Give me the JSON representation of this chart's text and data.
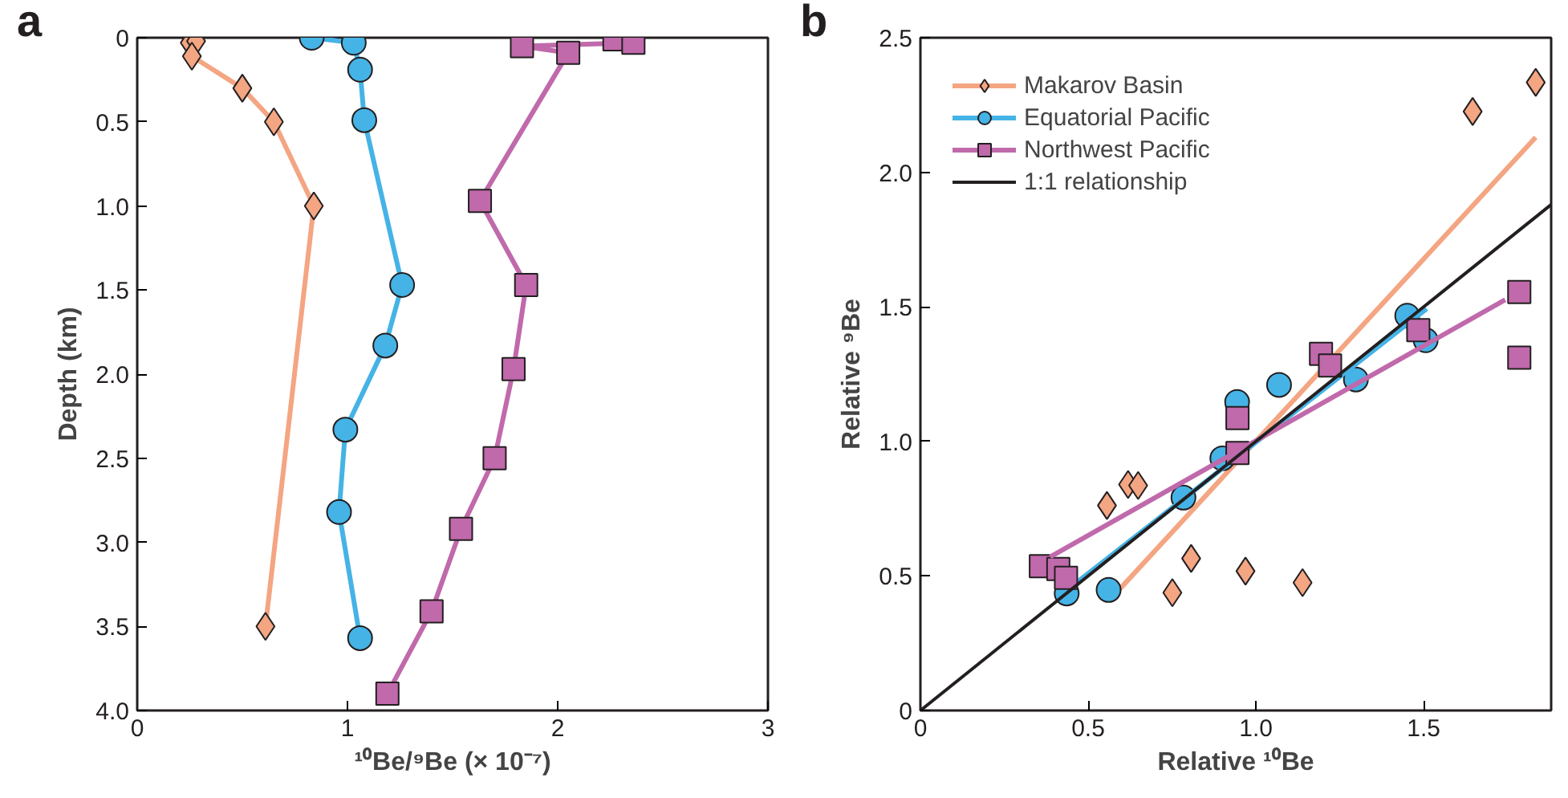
{
  "chart_data": [
    {
      "type": "line",
      "xlabel": "¹⁰Be/⁹Be (× 10⁻⁷)",
      "ylabel": "Depth (km)",
      "annotations": [
        "a"
      ],
      "xlim": [
        0,
        3
      ],
      "xticks": [
        0,
        1,
        2,
        3
      ],
      "ylim": [
        4,
        0
      ],
      "yticks": [
        0,
        {
          "value": 0.5,
          "label": "0.5"
        },
        {
          "value": 1,
          "label": "1.0"
        },
        {
          "value": 1.5,
          "label": "1.5"
        },
        {
          "value": 2,
          "label": "2.0"
        },
        {
          "value": 2.5,
          "label": "2.5"
        },
        {
          "value": 3,
          "label": "3.0"
        },
        {
          "value": 3.5,
          "label": "3.5"
        },
        {
          "value": 4,
          "label": "4.0"
        }
      ],
      "grid": false,
      "legend": false,
      "line_style": "solid",
      "series": [
        {
          "color": "#f4a582",
          "marker": "diamond",
          "x": [
            0.25,
            0.28,
            0.26,
            0.5,
            0.65,
            0.84,
            0.61
          ],
          "values": [
            0.03,
            0.02,
            0.11,
            0.3,
            0.5,
            1.0,
            3.5
          ]
        },
        {
          "color": "#45b3e6",
          "marker": "circle",
          "x": [
            0.83,
            1.03,
            1.06,
            1.08,
            1.26,
            1.18,
            0.99,
            0.96,
            1.06
          ],
          "values": [
            0.0,
            0.03,
            0.19,
            0.49,
            1.47,
            1.83,
            2.33,
            2.82,
            3.57
          ]
        },
        {
          "color": "#c069ab",
          "marker": "square",
          "x": [
            2.27,
            2.36,
            1.83,
            2.05,
            1.63,
            1.85,
            1.79,
            1.7,
            1.54,
            1.4,
            1.19
          ],
          "values": [
            0.01,
            0.03,
            0.05,
            0.09,
            0.97,
            1.47,
            1.97,
            2.5,
            2.92,
            3.41,
            3.9
          ]
        }
      ]
    },
    {
      "type": "scatter",
      "xlabel": "Relative ¹⁰Be",
      "ylabel": "Relative ⁹Be",
      "annotations": [
        "b"
      ],
      "xlim": [
        0,
        1.88
      ],
      "xticks": [
        0,
        0.5,
        {
          "value": 1,
          "label": "1.0"
        },
        1.5
      ],
      "ylim": [
        0,
        2.5
      ],
      "yticks": [
        0,
        0.5,
        {
          "value": 1,
          "label": "1.0"
        },
        1.5,
        {
          "value": 2,
          "label": "2.0"
        },
        2.5
      ],
      "grid": false,
      "legend": "top left",
      "series": [
        {
          "name": "Makarov Basin",
          "color": "#f4a582",
          "marker": "diamond",
          "x": [
            1.834,
            1.646,
            0.619,
            0.649,
            0.556,
            0.807,
            0.751,
            0.969,
            1.139
          ],
          "values": [
            2.334,
            2.226,
            0.84,
            0.836,
            0.762,
            0.565,
            0.438,
            0.518,
            0.475
          ]
        },
        {
          "type": "line",
          "color": "#f4a582",
          "x": [
            0.563,
            1.834
          ],
          "values": [
            0.409,
            2.13
          ]
        },
        {
          "name": "Equatorial Pacific",
          "color": "#45b3e6",
          "marker": "circle",
          "x": [
            0.436,
            0.561,
            0.784,
            0.9,
            0.944,
            1.069,
            1.298,
            1.451,
            1.506
          ],
          "values": [
            0.435,
            0.448,
            0.791,
            0.937,
            1.146,
            1.21,
            1.23,
            1.467,
            1.376
          ]
        },
        {
          "type": "line",
          "color": "#45b3e6",
          "x": [
            0.418,
            1.509
          ],
          "values": [
            0.429,
            1.493
          ]
        },
        {
          "name": "Northwest Pacific",
          "color": "#c069ab",
          "marker": "square",
          "x": [
            0.359,
            0.411,
            0.434,
            0.945,
            0.945,
            1.194,
            1.221,
            1.484,
            1.785,
            1.785
          ],
          "values": [
            0.536,
            0.526,
            0.493,
            1.087,
            0.957,
            1.325,
            1.282,
            1.413,
            1.555,
            1.311
          ]
        },
        {
          "type": "line",
          "color": "#c069ab",
          "x": [
            0.387,
            1.743
          ],
          "values": [
            0.571,
            1.526
          ]
        },
        {
          "type": "line",
          "name": "1:1 relationship",
          "color": "#231f20",
          "x": [
            0,
            1.88
          ],
          "values": [
            0,
            1.88
          ]
        }
      ]
    }
  ]
}
